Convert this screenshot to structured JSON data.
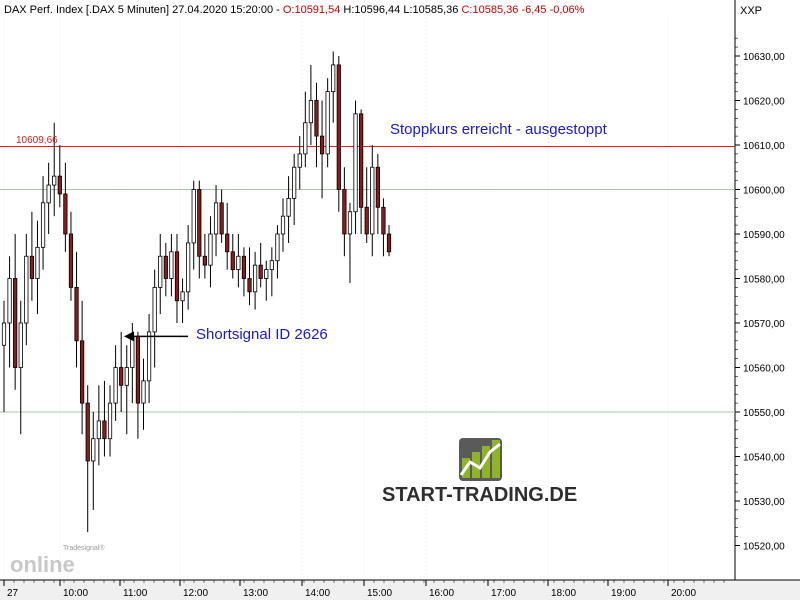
{
  "header": {
    "instrument": "DAX Perf. Index [.DAX  5 Minuten] 27.04.2020 15:20:00 - ",
    "open": "O:10591,54",
    "high": "H:10596,44",
    "low": "L:10585,36",
    "close": "C:10585,36",
    "change": "-6,45 -0,06%",
    "symbol": "XXP"
  },
  "colors": {
    "up_candle": "#ffffff",
    "down_candle": "#8b1c1c",
    "level_line": "#e02020",
    "annotation_text": "#1a1acc",
    "grid_green": "#a8c8a8"
  },
  "annotations": {
    "stop_label": "Stoppkurs erreicht - ausgestoppt",
    "signal_label": "Shortsignal ID 2626",
    "level_value": "10609,66"
  },
  "branding": {
    "logo_text": "START-TRADING.DE",
    "watermark_small": "Tradesignal®",
    "watermark_big": "online"
  },
  "chart_data": {
    "type": "candlestick",
    "interval": "5 Minuten",
    "x_tick_labels": [
      "27",
      "10:00",
      "11:00",
      "12:00",
      "13:00",
      "14:00",
      "15:00",
      "16:00",
      "17:00",
      "18:00",
      "19:00",
      "20:00"
    ],
    "y_tick_labels": [
      "10630,00",
      "10620,00",
      "10610,00",
      "10600,00",
      "10590,00",
      "10580,00",
      "10570,00",
      "10560,00",
      "10550,00",
      "10540,00",
      "10530,00",
      "10520,00"
    ],
    "y_ticks": [
      10630,
      10620,
      10610,
      10600,
      10590,
      10580,
      10570,
      10560,
      10550,
      10540,
      10530,
      10520
    ],
    "y_range": [
      10516,
      10641
    ],
    "level_line": 10609.66,
    "green_lines": [
      10600,
      10550
    ],
    "signal_arrow_price": 10567,
    "candles": [
      [
        10565,
        10575,
        10550,
        10570
      ],
      [
        10570,
        10585,
        10560,
        10580
      ],
      [
        10580,
        10590,
        10555,
        10560
      ],
      [
        10560,
        10575,
        10545,
        10570
      ],
      [
        10570,
        10590,
        10565,
        10585
      ],
      [
        10585,
        10595,
        10575,
        10580
      ],
      [
        10580,
        10593,
        10572,
        10587
      ],
      [
        10587,
        10603,
        10582,
        10597
      ],
      [
        10597,
        10606,
        10590,
        10601
      ],
      [
        10601,
        10615,
        10594,
        10603
      ],
      [
        10603,
        10610,
        10596,
        10599
      ],
      [
        10599,
        10606,
        10586,
        10590
      ],
      [
        10590,
        10595,
        10575,
        10578
      ],
      [
        10578,
        10586,
        10560,
        10566
      ],
      [
        10566,
        10575,
        10545,
        10552
      ],
      [
        10552,
        10556,
        10523,
        10539
      ],
      [
        10539,
        10550,
        10528,
        10544
      ],
      [
        10544,
        10556,
        10538,
        10548
      ],
      [
        10548,
        10557,
        10540,
        10544
      ],
      [
        10544,
        10556,
        10540,
        10552
      ],
      [
        10552,
        10565,
        10548,
        10560
      ],
      [
        10560,
        10568,
        10550,
        10556
      ],
      [
        10556,
        10565,
        10545,
        10560
      ],
      [
        10560,
        10570,
        10552,
        10567
      ],
      [
        10567,
        10568,
        10544,
        10552
      ],
      [
        10552,
        10562,
        10546,
        10557
      ],
      [
        10557,
        10572,
        10552,
        10568
      ],
      [
        10568,
        10582,
        10560,
        10578
      ],
      [
        10578,
        10590,
        10572,
        10585
      ],
      [
        10585,
        10588,
        10576,
        10580
      ],
      [
        10580,
        10590,
        10576,
        10586
      ],
      [
        10586,
        10590,
        10570,
        10575
      ],
      [
        10575,
        10580,
        10570,
        10577
      ],
      [
        10577,
        10592,
        10573,
        10588
      ],
      [
        10588,
        10602,
        10582,
        10600
      ],
      [
        10600,
        10602,
        10580,
        10585
      ],
      [
        10585,
        10590,
        10580,
        10583
      ],
      [
        10583,
        10594,
        10578,
        10590
      ],
      [
        10590,
        10601,
        10585,
        10597
      ],
      [
        10597,
        10600,
        10588,
        10590
      ],
      [
        10590,
        10597,
        10582,
        10586
      ],
      [
        10586,
        10590,
        10580,
        10582
      ],
      [
        10582,
        10590,
        10578,
        10585
      ],
      [
        10585,
        10587,
        10576,
        10580
      ],
      [
        10580,
        10587,
        10574,
        10577
      ],
      [
        10577,
        10586,
        10573,
        10583
      ],
      [
        10583,
        10588,
        10578,
        10580
      ],
      [
        10580,
        10584,
        10575,
        10582
      ],
      [
        10582,
        10587,
        10576,
        10584
      ],
      [
        10584,
        10592,
        10580,
        10590
      ],
      [
        10590,
        10598,
        10586,
        10594
      ],
      [
        10594,
        10603,
        10588,
        10598
      ],
      [
        10598,
        10608,
        10592,
        10605
      ],
      [
        10605,
        10612,
        10600,
        10608
      ],
      [
        10608,
        10622,
        10605,
        10615
      ],
      [
        10615,
        10628,
        10610,
        10620
      ],
      [
        10620,
        10624,
        10605,
        10612
      ],
      [
        10612,
        10620,
        10598,
        10608
      ],
      [
        10608,
        10625,
        10605,
        10622
      ],
      [
        10622,
        10631,
        10615,
        10628
      ],
      [
        10628,
        10630,
        10595,
        10600
      ],
      [
        10600,
        10605,
        10585,
        10590
      ],
      [
        10590,
        10597,
        10579,
        10595
      ],
      [
        10595,
        10620,
        10590,
        10617
      ],
      [
        10617,
        10618,
        10590,
        10596
      ],
      [
        10596,
        10605,
        10588,
        10590
      ],
      [
        10590,
        10610,
        10585,
        10605
      ],
      [
        10605,
        10608,
        10590,
        10596
      ],
      [
        10596,
        10598,
        10585,
        10590
      ],
      [
        10590,
        10592,
        10585,
        10586
      ]
    ]
  }
}
